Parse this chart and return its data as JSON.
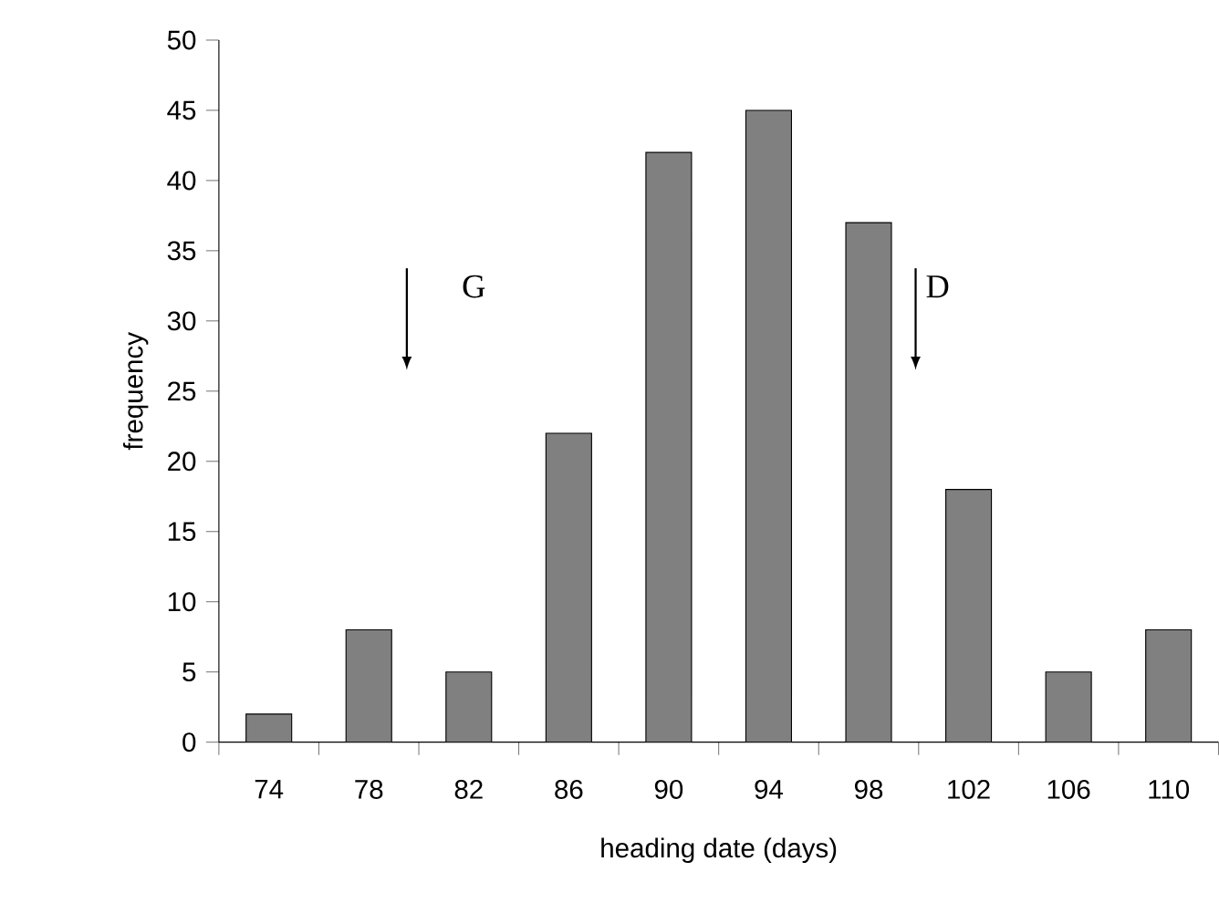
{
  "chart_data": {
    "type": "bar",
    "categories": [
      "74",
      "78",
      "82",
      "86",
      "90",
      "94",
      "98",
      "102",
      "106",
      "110"
    ],
    "values": [
      2,
      8,
      5,
      22,
      42,
      45,
      37,
      18,
      5,
      8
    ],
    "color": "#808080",
    "xlabel": "heading date (days)",
    "ylabel": "frequency",
    "ylim": [
      0,
      50
    ],
    "yticks": [
      0,
      5,
      10,
      15,
      20,
      25,
      30,
      35,
      40,
      45,
      50
    ],
    "annotations": [
      "G",
      "D"
    ]
  }
}
